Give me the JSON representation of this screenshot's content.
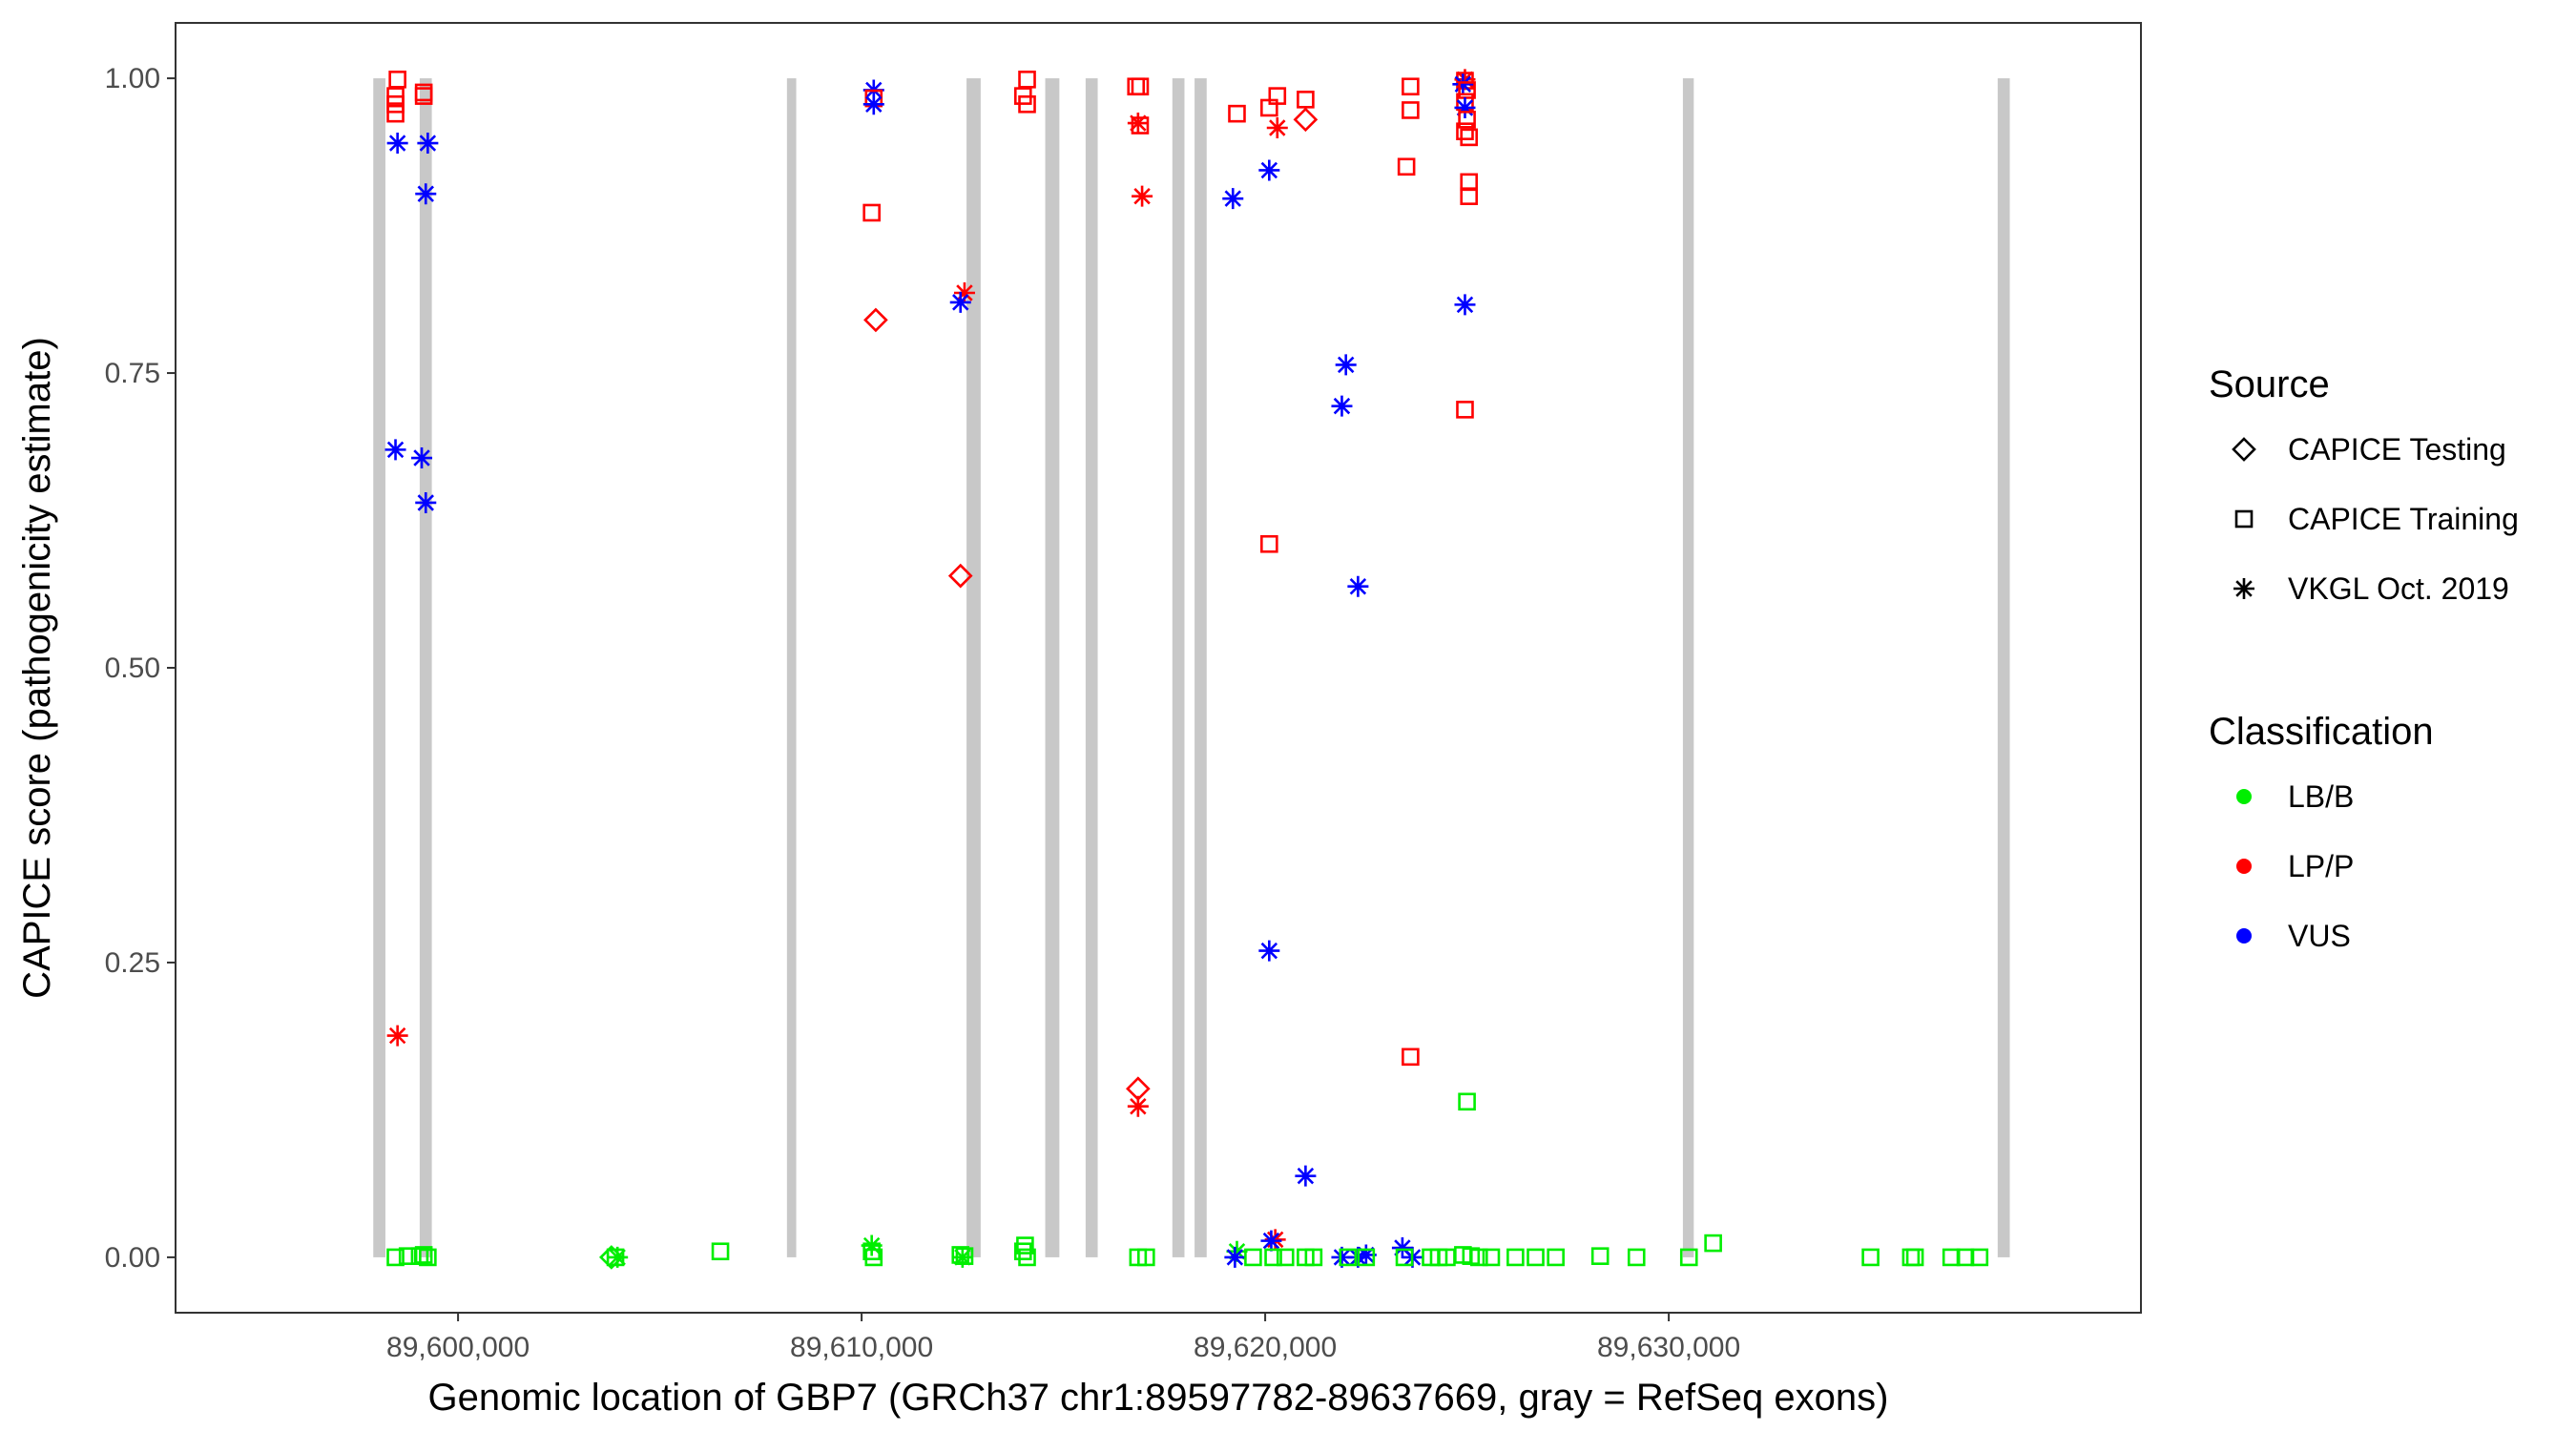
{
  "chart_data": {
    "type": "scatter",
    "xlabel": "Genomic location of GBP7 (GRCh37 chr1:89597782-89637669, gray = RefSeq exons)",
    "ylabel": "CAPICE score (pathogenicity estimate)",
    "xlim": [
      89593000,
      89641700
    ],
    "ylim": [
      -0.047,
      1.047
    ],
    "x_ticks": [
      89600000,
      89610000,
      89620000,
      89630000
    ],
    "x_tick_labels": [
      "89,600,000",
      "89,610,000",
      "89,620,000",
      "89,630,000"
    ],
    "y_ticks": [
      0,
      0.25,
      0.5,
      0.75,
      1
    ],
    "y_tick_labels": [
      "0.00",
      "0.25",
      "0.50",
      "0.75",
      "1.00"
    ],
    "grid": false,
    "exons_color": "#c8c8c8",
    "exons": [
      [
        89597900,
        89598200
      ],
      [
        89599050,
        89599350
      ],
      [
        89608150,
        89608380
      ],
      [
        89612600,
        89612950
      ],
      [
        89614550,
        89614900
      ],
      [
        89615550,
        89615850
      ],
      [
        89617700,
        89618000
      ],
      [
        89618250,
        89618550
      ],
      [
        89630350,
        89630620
      ],
      [
        89638150,
        89638450
      ]
    ],
    "legend": {
      "placement": "right",
      "source_title": "Source",
      "source_items": [
        {
          "label": "CAPICE Testing",
          "shape": "diamond"
        },
        {
          "label": "CAPICE Training",
          "shape": "square"
        },
        {
          "label": "VKGL Oct. 2019",
          "shape": "asterisk"
        }
      ],
      "class_title": "Classification",
      "class_items": [
        {
          "label": "LB/B",
          "color": "#00ee00"
        },
        {
          "label": "LP/P",
          "color": "#ff0000"
        },
        {
          "label": "VUS",
          "color": "#0000ff"
        }
      ]
    },
    "points": [
      {
        "x": 89598500,
        "y": 0.999,
        "s": "square",
        "c": "LP/P"
      },
      {
        "x": 89598450,
        "y": 0.985,
        "s": "square",
        "c": "LP/P"
      },
      {
        "x": 89598450,
        "y": 0.978,
        "s": "square",
        "c": "LP/P"
      },
      {
        "x": 89598450,
        "y": 0.97,
        "s": "square",
        "c": "LP/P"
      },
      {
        "x": 89599150,
        "y": 0.988,
        "s": "square",
        "c": "LP/P"
      },
      {
        "x": 89599150,
        "y": 0.985,
        "s": "square",
        "c": "LP/P"
      },
      {
        "x": 89598500,
        "y": 0.945,
        "s": "asterisk",
        "c": "VUS"
      },
      {
        "x": 89599250,
        "y": 0.945,
        "s": "asterisk",
        "c": "VUS"
      },
      {
        "x": 89599200,
        "y": 0.902,
        "s": "asterisk",
        "c": "VUS"
      },
      {
        "x": 89598450,
        "y": 0.685,
        "s": "asterisk",
        "c": "VUS"
      },
      {
        "x": 89599100,
        "y": 0.678,
        "s": "asterisk",
        "c": "VUS"
      },
      {
        "x": 89599200,
        "y": 0.64,
        "s": "asterisk",
        "c": "VUS"
      },
      {
        "x": 89598500,
        "y": 0.188,
        "s": "asterisk",
        "c": "LP/P"
      },
      {
        "x": 89598450,
        "y": 0.0,
        "s": "square",
        "c": "LB/B"
      },
      {
        "x": 89598750,
        "y": 0.001,
        "s": "square",
        "c": "LB/B"
      },
      {
        "x": 89599050,
        "y": 0.001,
        "s": "square",
        "c": "LB/B"
      },
      {
        "x": 89599250,
        "y": 0.0,
        "s": "square",
        "c": "LB/B"
      },
      {
        "x": 89599150,
        "y": 0.002,
        "s": "square",
        "c": "LB/B"
      },
      {
        "x": 89603900,
        "y": 0.0,
        "s": "square",
        "c": "LB/B"
      },
      {
        "x": 89603950,
        "y": 0.0,
        "s": "asterisk",
        "c": "LB/B"
      },
      {
        "x": 89603800,
        "y": 0.0,
        "s": "diamond",
        "c": "LB/B"
      },
      {
        "x": 89610300,
        "y": 0.99,
        "s": "asterisk",
        "c": "VUS"
      },
      {
        "x": 89610300,
        "y": 0.983,
        "s": "square",
        "c": "LP/P"
      },
      {
        "x": 89610300,
        "y": 0.978,
        "s": "asterisk",
        "c": "VUS"
      },
      {
        "x": 89610250,
        "y": 0.886,
        "s": "square",
        "c": "LP/P"
      },
      {
        "x": 89610350,
        "y": 0.795,
        "s": "diamond",
        "c": "LP/P"
      },
      {
        "x": 89612550,
        "y": 0.818,
        "s": "asterisk",
        "c": "LP/P"
      },
      {
        "x": 89612450,
        "y": 0.81,
        "s": "asterisk",
        "c": "VUS"
      },
      {
        "x": 89612450,
        "y": 0.578,
        "s": "diamond",
        "c": "LP/P"
      },
      {
        "x": 89606500,
        "y": 0.005,
        "s": "square",
        "c": "LB/B"
      },
      {
        "x": 89610250,
        "y": 0.01,
        "s": "asterisk",
        "c": "LB/B"
      },
      {
        "x": 89610250,
        "y": 0.005,
        "s": "square",
        "c": "LB/B"
      },
      {
        "x": 89610300,
        "y": 0.0,
        "s": "square",
        "c": "LB/B"
      },
      {
        "x": 89612450,
        "y": 0.002,
        "s": "square",
        "c": "LB/B"
      },
      {
        "x": 89612550,
        "y": 0.001,
        "s": "square",
        "c": "LB/B"
      },
      {
        "x": 89612500,
        "y": 0.0,
        "s": "asterisk",
        "c": "LB/B"
      },
      {
        "x": 89614100,
        "y": 0.999,
        "s": "square",
        "c": "LP/P"
      },
      {
        "x": 89614000,
        "y": 0.985,
        "s": "square",
        "c": "LP/P"
      },
      {
        "x": 89614100,
        "y": 0.978,
        "s": "square",
        "c": "LP/P"
      },
      {
        "x": 89614050,
        "y": 0.01,
        "s": "square",
        "c": "LB/B"
      },
      {
        "x": 89614000,
        "y": 0.005,
        "s": "square",
        "c": "LB/B"
      },
      {
        "x": 89614100,
        "y": 0.0,
        "s": "square",
        "c": "LB/B"
      },
      {
        "x": 89616800,
        "y": 0.993,
        "s": "square",
        "c": "LP/P"
      },
      {
        "x": 89616900,
        "y": 0.993,
        "s": "square",
        "c": "LP/P"
      },
      {
        "x": 89616850,
        "y": 0.962,
        "s": "asterisk",
        "c": "LP/P"
      },
      {
        "x": 89616900,
        "y": 0.96,
        "s": "square",
        "c": "LP/P"
      },
      {
        "x": 89616950,
        "y": 0.9,
        "s": "asterisk",
        "c": "LP/P"
      },
      {
        "x": 89616850,
        "y": 0.143,
        "s": "diamond",
        "c": "LP/P"
      },
      {
        "x": 89616850,
        "y": 0.128,
        "s": "asterisk",
        "c": "LP/P"
      },
      {
        "x": 89616850,
        "y": 0.0,
        "s": "square",
        "c": "LB/B"
      },
      {
        "x": 89617050,
        "y": 0.0,
        "s": "square",
        "c": "LB/B"
      },
      {
        "x": 89619300,
        "y": 0.97,
        "s": "square",
        "c": "LP/P"
      },
      {
        "x": 89619200,
        "y": 0.898,
        "s": "asterisk",
        "c": "VUS"
      },
      {
        "x": 89620100,
        "y": 0.975,
        "s": "square",
        "c": "LP/P"
      },
      {
        "x": 89620300,
        "y": 0.985,
        "s": "square",
        "c": "LP/P"
      },
      {
        "x": 89620300,
        "y": 0.958,
        "s": "asterisk",
        "c": "LP/P"
      },
      {
        "x": 89620100,
        "y": 0.922,
        "s": "asterisk",
        "c": "VUS"
      },
      {
        "x": 89621000,
        "y": 0.982,
        "s": "square",
        "c": "LP/P"
      },
      {
        "x": 89621000,
        "y": 0.965,
        "s": "diamond",
        "c": "LP/P"
      },
      {
        "x": 89620100,
        "y": 0.605,
        "s": "square",
        "c": "LP/P"
      },
      {
        "x": 89620100,
        "y": 0.26,
        "s": "asterisk",
        "c": "VUS"
      },
      {
        "x": 89621000,
        "y": 0.069,
        "s": "asterisk",
        "c": "VUS"
      },
      {
        "x": 89620250,
        "y": 0.015,
        "s": "asterisk",
        "c": "LP/P"
      },
      {
        "x": 89620150,
        "y": 0.014,
        "s": "asterisk",
        "c": "VUS"
      },
      {
        "x": 89619300,
        "y": 0.005,
        "s": "asterisk",
        "c": "LB/B"
      },
      {
        "x": 89619250,
        "y": 0.0,
        "s": "asterisk",
        "c": "VUS"
      },
      {
        "x": 89619700,
        "y": 0.0,
        "s": "square",
        "c": "LB/B"
      },
      {
        "x": 89620200,
        "y": 0.0,
        "s": "square",
        "c": "LB/B"
      },
      {
        "x": 89620500,
        "y": 0.0,
        "s": "square",
        "c": "LB/B"
      },
      {
        "x": 89621000,
        "y": 0.0,
        "s": "square",
        "c": "LB/B"
      },
      {
        "x": 89621200,
        "y": 0.0,
        "s": "square",
        "c": "LB/B"
      },
      {
        "x": 89622000,
        "y": 0.757,
        "s": "asterisk",
        "c": "VUS"
      },
      {
        "x": 89621900,
        "y": 0.722,
        "s": "asterisk",
        "c": "VUS"
      },
      {
        "x": 89622300,
        "y": 0.569,
        "s": "asterisk",
        "c": "VUS"
      },
      {
        "x": 89621900,
        "y": 0.0,
        "s": "asterisk",
        "c": "VUS"
      },
      {
        "x": 89622500,
        "y": 0.002,
        "s": "asterisk",
        "c": "VUS"
      },
      {
        "x": 89622300,
        "y": 0.0,
        "s": "asterisk",
        "c": "VUS"
      },
      {
        "x": 89622050,
        "y": 0.0,
        "s": "square",
        "c": "LB/B"
      },
      {
        "x": 89622500,
        "y": 0.0,
        "s": "square",
        "c": "LB/B"
      },
      {
        "x": 89623600,
        "y": 0.993,
        "s": "square",
        "c": "LP/P"
      },
      {
        "x": 89623600,
        "y": 0.973,
        "s": "square",
        "c": "LP/P"
      },
      {
        "x": 89623500,
        "y": 0.925,
        "s": "square",
        "c": "LP/P"
      },
      {
        "x": 89623600,
        "y": 0.17,
        "s": "square",
        "c": "LP/P"
      },
      {
        "x": 89623400,
        "y": 0.008,
        "s": "asterisk",
        "c": "VUS"
      },
      {
        "x": 89623650,
        "y": 0.0,
        "s": "asterisk",
        "c": "VUS"
      },
      {
        "x": 89623450,
        "y": 0.0,
        "s": "square",
        "c": "LB/B"
      },
      {
        "x": 89624100,
        "y": 0.0,
        "s": "square",
        "c": "LB/B"
      },
      {
        "x": 89624300,
        "y": 0.0,
        "s": "square",
        "c": "LB/B"
      },
      {
        "x": 89624500,
        "y": 0.0,
        "s": "square",
        "c": "LB/B"
      },
      {
        "x": 89624950,
        "y": 0.999,
        "s": "asterisk",
        "c": "LP/P"
      },
      {
        "x": 89624950,
        "y": 0.998,
        "s": "square",
        "c": "LP/P"
      },
      {
        "x": 89624900,
        "y": 0.995,
        "s": "asterisk",
        "c": "VUS"
      },
      {
        "x": 89625000,
        "y": 0.99,
        "s": "square",
        "c": "LP/P"
      },
      {
        "x": 89624950,
        "y": 0.98,
        "s": "square",
        "c": "LP/P"
      },
      {
        "x": 89624950,
        "y": 0.975,
        "s": "asterisk",
        "c": "VUS"
      },
      {
        "x": 89625000,
        "y": 0.965,
        "s": "square",
        "c": "LP/P"
      },
      {
        "x": 89624950,
        "y": 0.955,
        "s": "square",
        "c": "LP/P"
      },
      {
        "x": 89625050,
        "y": 0.95,
        "s": "square",
        "c": "LP/P"
      },
      {
        "x": 89625050,
        "y": 0.912,
        "s": "square",
        "c": "LP/P"
      },
      {
        "x": 89625050,
        "y": 0.9,
        "s": "square",
        "c": "LP/P"
      },
      {
        "x": 89624950,
        "y": 0.808,
        "s": "asterisk",
        "c": "VUS"
      },
      {
        "x": 89624950,
        "y": 0.719,
        "s": "square",
        "c": "LP/P"
      },
      {
        "x": 89625000,
        "y": 0.132,
        "s": "square",
        "c": "LB/B"
      },
      {
        "x": 89624900,
        "y": 0.002,
        "s": "square",
        "c": "LB/B"
      },
      {
        "x": 89625100,
        "y": 0.001,
        "s": "square",
        "c": "LB/B"
      },
      {
        "x": 89625300,
        "y": 0.0,
        "s": "square",
        "c": "LB/B"
      },
      {
        "x": 89625600,
        "y": 0.0,
        "s": "square",
        "c": "LB/B"
      },
      {
        "x": 89626200,
        "y": 0.0,
        "s": "square",
        "c": "LB/B"
      },
      {
        "x": 89626700,
        "y": 0.0,
        "s": "square",
        "c": "LB/B"
      },
      {
        "x": 89627200,
        "y": 0.0,
        "s": "square",
        "c": "LB/B"
      },
      {
        "x": 89628300,
        "y": 0.001,
        "s": "square",
        "c": "LB/B"
      },
      {
        "x": 89629200,
        "y": 0.0,
        "s": "square",
        "c": "LB/B"
      },
      {
        "x": 89630500,
        "y": 0.0,
        "s": "square",
        "c": "LB/B"
      },
      {
        "x": 89631100,
        "y": 0.012,
        "s": "square",
        "c": "LB/B"
      },
      {
        "x": 89635000,
        "y": 0.0,
        "s": "square",
        "c": "LB/B"
      },
      {
        "x": 89636000,
        "y": 0.0,
        "s": "square",
        "c": "LB/B"
      },
      {
        "x": 89636100,
        "y": 0.0,
        "s": "square",
        "c": "LB/B"
      },
      {
        "x": 89637000,
        "y": 0.0,
        "s": "square",
        "c": "LB/B"
      },
      {
        "x": 89637350,
        "y": 0.0,
        "s": "square",
        "c": "LB/B"
      },
      {
        "x": 89637700,
        "y": 0.0,
        "s": "square",
        "c": "LB/B"
      }
    ]
  }
}
